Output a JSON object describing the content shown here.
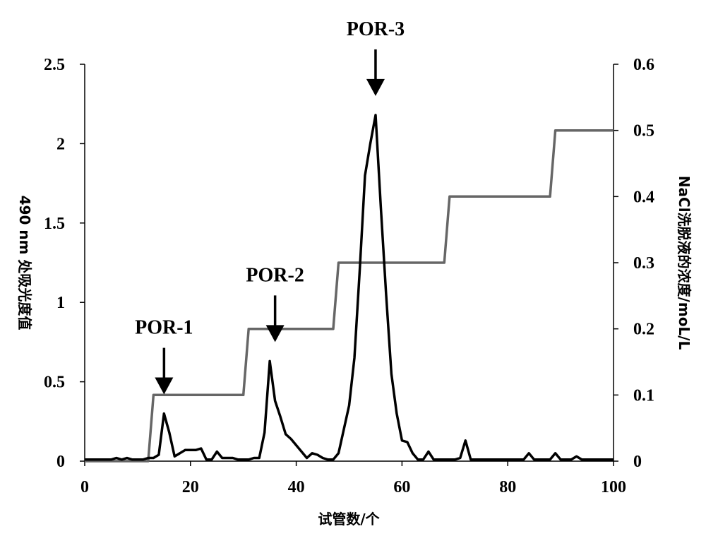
{
  "chart_data": {
    "type": "line",
    "xlabel": "试管数/个",
    "ylabel_left": "490 nm 处吸光度值",
    "ylabel_right": "NaCl洗脱液的浓度/moL/L",
    "xlim": [
      0,
      100
    ],
    "ylim_left": [
      0,
      2.5
    ],
    "ylim_right": [
      0,
      0.6
    ],
    "x_ticks": [
      0,
      20,
      40,
      60,
      80,
      100
    ],
    "x_tick_labels": [
      "0",
      "20",
      "40",
      "60",
      "80",
      "100"
    ],
    "y_left_ticks": [
      0,
      0.5,
      1,
      1.5,
      2,
      2.5
    ],
    "y_left_tick_labels": [
      "0",
      "0.5",
      "1",
      "1.5",
      "2",
      "2.5"
    ],
    "y_right_ticks": [
      0,
      0.1,
      0.2,
      0.3,
      0.4,
      0.5,
      0.6
    ],
    "y_right_tick_labels": [
      "0",
      "0.1",
      "0.2",
      "0.3",
      "0.4",
      "0.5",
      "0.6"
    ],
    "grid": false,
    "series": [
      {
        "axis": "left",
        "color": "#000000",
        "x": [
          0,
          1,
          2,
          3,
          4,
          5,
          6,
          7,
          8,
          9,
          10,
          11,
          12,
          13,
          14,
          15,
          16,
          17,
          18,
          19,
          20,
          21,
          22,
          23,
          24,
          25,
          26,
          27,
          28,
          29,
          30,
          31,
          32,
          33,
          34,
          35,
          36,
          37,
          38,
          39,
          40,
          41,
          42,
          43,
          44,
          45,
          46,
          47,
          48,
          49,
          50,
          51,
          52,
          53,
          54,
          55,
          56,
          57,
          58,
          59,
          60,
          61,
          62,
          63,
          64,
          65,
          66,
          67,
          68,
          69,
          70,
          71,
          72,
          73,
          74,
          75,
          76,
          77,
          78,
          79,
          80,
          81,
          82,
          83,
          84,
          85,
          86,
          87,
          88,
          89,
          90,
          91,
          92,
          93,
          94,
          95,
          96,
          97,
          98,
          99,
          100
        ],
        "y": [
          0.01,
          0.01,
          0.01,
          0.01,
          0.01,
          0.01,
          0.02,
          0.01,
          0.02,
          0.01,
          0.01,
          0.01,
          0.02,
          0.02,
          0.04,
          0.3,
          0.18,
          0.03,
          0.05,
          0.07,
          0.07,
          0.07,
          0.08,
          0.01,
          0.01,
          0.06,
          0.02,
          0.02,
          0.02,
          0.01,
          0.01,
          0.01,
          0.02,
          0.02,
          0.18,
          0.63,
          0.38,
          0.28,
          0.17,
          0.14,
          0.1,
          0.06,
          0.02,
          0.05,
          0.04,
          0.02,
          0.01,
          0.01,
          0.05,
          0.2,
          0.35,
          0.65,
          1.2,
          1.8,
          2.0,
          2.18,
          1.6,
          1.05,
          0.55,
          0.3,
          0.13,
          0.12,
          0.05,
          0.01,
          0.01,
          0.06,
          0.01,
          0.01,
          0.01,
          0.01,
          0.01,
          0.02,
          0.13,
          0.01,
          0.01,
          0.01,
          0.01,
          0.01,
          0.01,
          0.01,
          0.01,
          0.01,
          0.01,
          0.01,
          0.05,
          0.01,
          0.01,
          0.01,
          0.01,
          0.05,
          0.01,
          0.01,
          0.01,
          0.03,
          0.01,
          0.01,
          0.01,
          0.01,
          0.01,
          0.01,
          0.01
        ]
      },
      {
        "axis": "right",
        "color": "#666666",
        "x": [
          0,
          12,
          13,
          30,
          31,
          47,
          48,
          68,
          69,
          88,
          89,
          100
        ],
        "y": [
          0,
          0,
          0.1,
          0.1,
          0.2,
          0.2,
          0.3,
          0.3,
          0.4,
          0.4,
          0.5,
          0.5
        ]
      }
    ],
    "annotations": [
      {
        "text": "POR-1",
        "x": 15
      },
      {
        "text": "POR-2",
        "x": 36
      },
      {
        "text": "POR-3",
        "x": 55
      }
    ]
  }
}
